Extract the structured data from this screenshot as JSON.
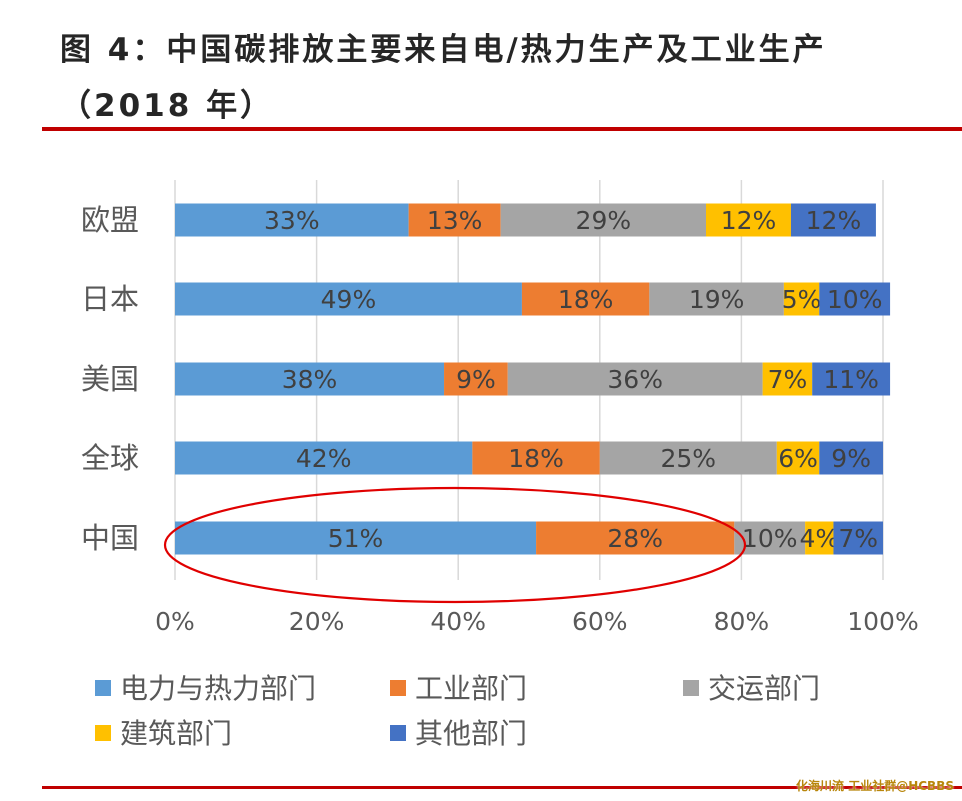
{
  "page": {
    "title_line1": "图 4：中国碳排放主要来自电/热力生产及工业生产",
    "title_line2": "（2018 年）",
    "watermark": "化海川流 工业社群@HCBBS"
  },
  "chart_data": {
    "type": "bar",
    "orientation": "horizontal",
    "stacked": "percent",
    "title": "图 4：中国碳排放主要来自电/热力生产及工业生产（2018 年）",
    "categories": [
      "欧盟",
      "日本",
      "美国",
      "全球",
      "中国"
    ],
    "series": [
      {
        "name": "电力与热力部门",
        "color": "#5b9bd5",
        "values": [
          33,
          49,
          38,
          42,
          51
        ]
      },
      {
        "name": "工业部门",
        "color": "#ed7d31",
        "values": [
          13,
          18,
          9,
          18,
          28
        ]
      },
      {
        "name": "交运部门",
        "color": "#a5a5a5",
        "values": [
          29,
          19,
          36,
          25,
          10
        ]
      },
      {
        "name": "建筑部门",
        "color": "#ffc000",
        "values": [
          12,
          5,
          7,
          6,
          4
        ]
      },
      {
        "name": "其他部门",
        "color": "#4472c4",
        "values": [
          12,
          10,
          11,
          9,
          7
        ]
      }
    ],
    "xlim": [
      0,
      100
    ],
    "xticks": [
      "0%",
      "20%",
      "40%",
      "60%",
      "80%",
      "100%"
    ],
    "grid": "vertical",
    "legend_position": "bottom",
    "highlight": {
      "category": "中国",
      "shape": "ellipse",
      "color": "#e00000"
    }
  }
}
